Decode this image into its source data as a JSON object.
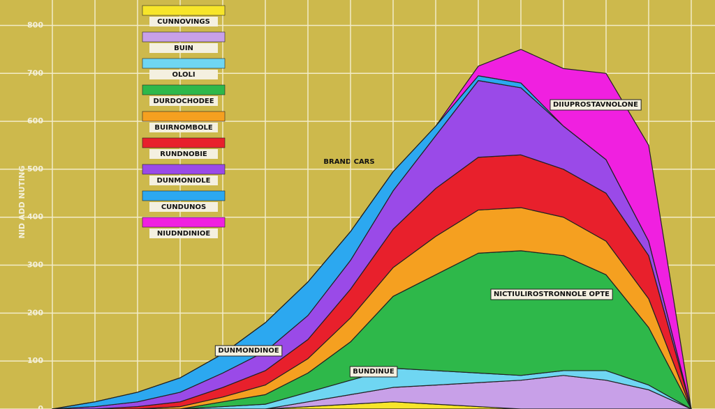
{
  "chart_data": {
    "type": "stacked-area",
    "title": "BRAND CARS",
    "y_label": "NID ADD NUTING",
    "x": [
      0,
      1,
      2,
      3,
      4,
      5,
      6,
      7,
      8,
      9,
      10,
      11,
      12,
      13,
      14,
      15
    ],
    "xlim": [
      0,
      15
    ],
    "ylim": [
      0,
      853
    ],
    "yticks": [
      0,
      100,
      200,
      300,
      400,
      500,
      600,
      700,
      800
    ],
    "grid": true,
    "series": [
      {
        "name": "CUNNOVINGS",
        "color": "#f7e52a",
        "values": [
          0,
          0,
          0,
          0,
          0,
          0,
          5,
          10,
          15,
          10,
          5,
          0,
          0,
          0,
          0,
          0
        ]
      },
      {
        "name": "BUIN",
        "color": "#c8a0e8",
        "values": [
          0,
          0,
          0,
          0,
          0,
          0,
          10,
          20,
          30,
          40,
          50,
          60,
          70,
          60,
          40,
          0
        ]
      },
      {
        "name": "OLOLI",
        "color": "#6fd6f2",
        "values": [
          0,
          0,
          0,
          0,
          5,
          10,
          20,
          30,
          40,
          30,
          20,
          10,
          10,
          20,
          10,
          0
        ]
      },
      {
        "name": "DURDOCHODEE",
        "color": "#2eb84a",
        "values": [
          0,
          0,
          0,
          0,
          10,
          20,
          40,
          80,
          150,
          200,
          250,
          260,
          240,
          200,
          120,
          0
        ]
      },
      {
        "name": "BUIRNOMBOLE",
        "color": "#f5a020",
        "values": [
          0,
          0,
          0,
          5,
          10,
          20,
          30,
          50,
          60,
          80,
          90,
          90,
          80,
          70,
          60,
          0
        ]
      },
      {
        "name": "RUNDNOBIE",
        "color": "#e8202c",
        "values": [
          0,
          0,
          5,
          10,
          20,
          30,
          40,
          60,
          80,
          100,
          110,
          110,
          100,
          100,
          90,
          0
        ]
      },
      {
        "name": "DUNMONIOLE",
        "color": "#9a4ae8",
        "values": [
          0,
          5,
          10,
          20,
          30,
          40,
          50,
          60,
          80,
          110,
          160,
          140,
          90,
          70,
          30,
          0
        ]
      },
      {
        "name": "CUNDUNOS",
        "color": "#2ca8f0",
        "values": [
          0,
          10,
          20,
          30,
          40,
          60,
          70,
          60,
          40,
          20,
          10,
          10,
          0,
          0,
          0,
          0
        ]
      },
      {
        "name": "NIUDNDINIOE",
        "color": "#f020e0",
        "values": [
          0,
          0,
          0,
          0,
          0,
          0,
          0,
          0,
          0,
          0,
          20,
          70,
          120,
          180,
          200,
          0
        ]
      }
    ],
    "annotations": [
      "DIIUPROSTAVNOLONE",
      "NICTIULIROSTRONNOLE OPTE",
      "DUNMONDINOE",
      "BUNDINUE"
    ]
  }
}
